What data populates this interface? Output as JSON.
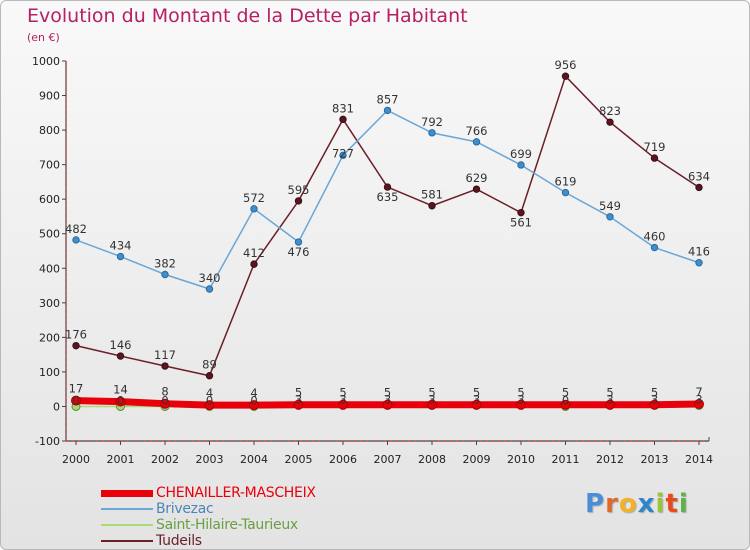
{
  "title": "Evolution du Montant de la Dette par Habitant",
  "subtitle": "(en €)",
  "logo": [
    "P",
    "r",
    "o",
    "x",
    "i",
    "t",
    "i"
  ],
  "logo_colors": [
    "#4a8fd6",
    "#e06a2a",
    "#f2b226",
    "#2d86c9",
    "#9ac43c",
    "#e8491d",
    "#5cb34a"
  ],
  "chart_data": {
    "type": "line",
    "title": "Evolution du Montant de la Dette par Habitant",
    "ylabel": "(en €)",
    "ylim": [
      -100,
      1000
    ],
    "yticks": [
      -100,
      0,
      100,
      200,
      300,
      400,
      500,
      600,
      700,
      800,
      900,
      1000
    ],
    "x": [
      "2000",
      "2001",
      "2002",
      "2003",
      "2004",
      "2005",
      "2006",
      "2007",
      "2008",
      "2009",
      "2010",
      "2011",
      "2012",
      "2013",
      "2014"
    ],
    "grid": false,
    "series": [
      {
        "name": "CHENAILLER-MASCHEIX",
        "color": "#e8000b",
        "values": [
          17,
          14,
          8,
          4,
          4,
          5,
          5,
          5,
          5,
          5,
          5,
          5,
          5,
          5,
          7
        ],
        "value_labels": [
          "17",
          "14",
          "8",
          "4",
          "4",
          "5",
          "5",
          "5",
          "5",
          "5",
          "5",
          "5",
          "5",
          "5",
          "7"
        ]
      },
      {
        "name": "Brivezac",
        "color": "#6aa6d6",
        "values": [
          482,
          434,
          382,
          340,
          572,
          476,
          727,
          857,
          792,
          766,
          699,
          619,
          549,
          460,
          416
        ],
        "value_labels": [
          "482",
          "434",
          "382",
          "340",
          "572",
          "476",
          "727",
          "857",
          "792",
          "766",
          "699",
          "619",
          "549",
          "460",
          "416"
        ]
      },
      {
        "name": "Saint-Hilaire-Taurieux",
        "color": "#a6dc72",
        "values": [
          0,
          0,
          0,
          0,
          0,
          3,
          3,
          3,
          3,
          3,
          3,
          0,
          3,
          3,
          3
        ],
        "value_labels": [
          "0",
          "0",
          "0",
          "0",
          "0",
          "3",
          "3",
          "3",
          "3",
          "3",
          "3",
          "0",
          "3",
          "3",
          "3"
        ]
      },
      {
        "name": "Tudeils",
        "color": "#6b1f28",
        "values": [
          176,
          146,
          117,
          89,
          412,
          595,
          831,
          635,
          581,
          629,
          561,
          956,
          823,
          719,
          634
        ],
        "value_labels": [
          "176",
          "146",
          "117",
          "89",
          "412",
          "595",
          "831",
          "635",
          "581",
          "629",
          "561",
          "956",
          "823",
          "719",
          "634"
        ]
      }
    ]
  }
}
